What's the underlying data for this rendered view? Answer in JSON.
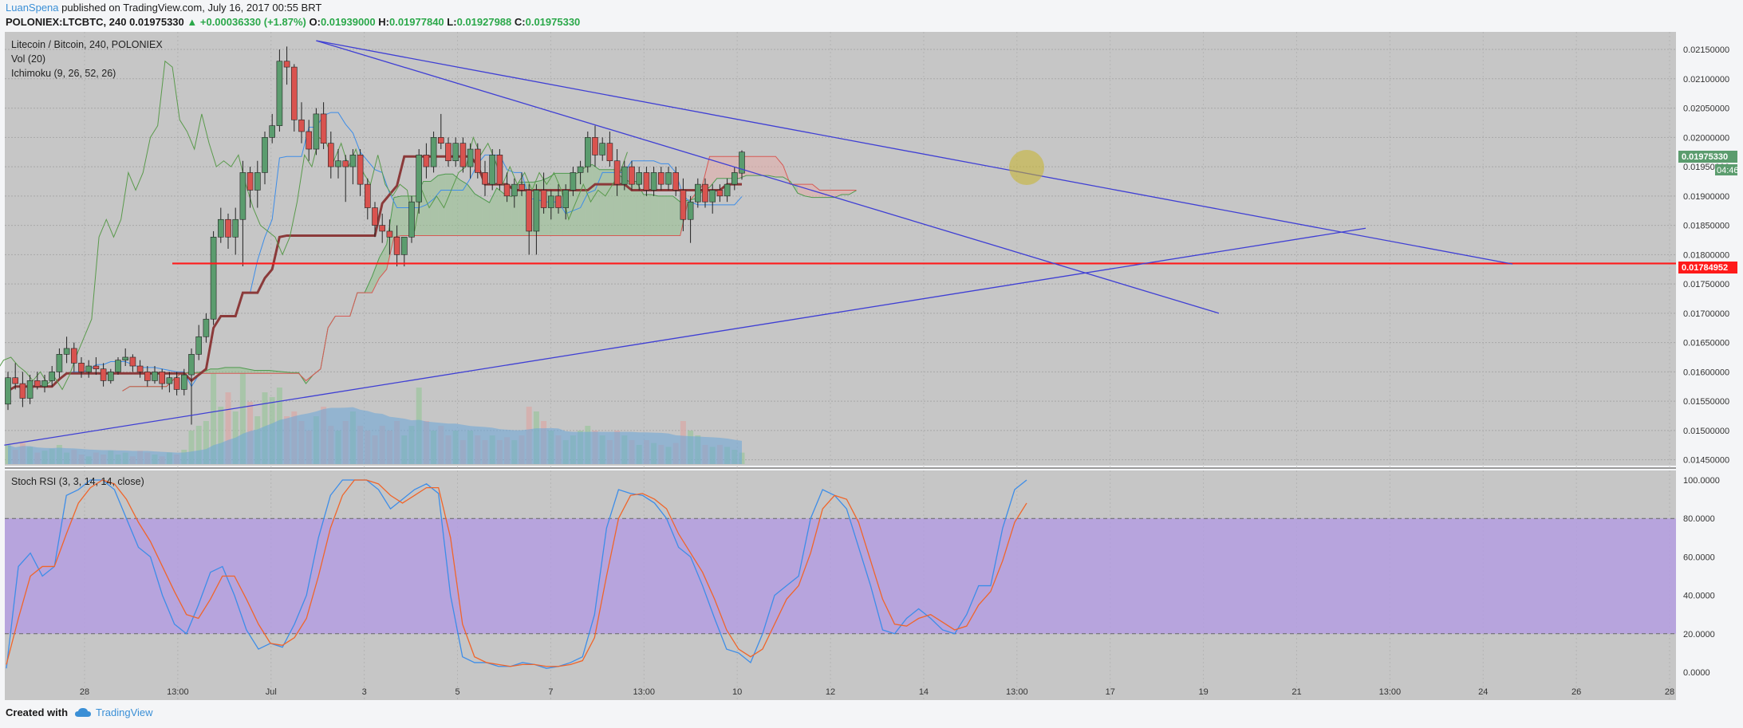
{
  "header": {
    "author": "LuanSpena",
    "published": "published on TradingView.com, July 16, 2017 00:55 BRT",
    "symbol": "POLONIEX:LTCBTC, 240",
    "last": "0.01975330",
    "change": "▲ +0.00036330 (+1.87%)",
    "open_label": "O:",
    "open": "0.01939000",
    "high_label": "H:",
    "high": "0.01977840",
    "low_label": "L:",
    "low": "0.01927988",
    "close_label": "C:",
    "close": "0.01975330"
  },
  "legend": {
    "title": "Litecoin / Bitcoin, 240, POLONIEX",
    "vol": "Vol (20)",
    "ichimoku": "Ichimoku (9, 26, 52, 26)",
    "stoch": "Stoch RSI (3, 3, 14, 14, close)"
  },
  "badges": {
    "price": "0.01975330",
    "countdown": "04:46",
    "support": "0.01784952"
  },
  "footer": {
    "created_with": "Created with",
    "brand": "TradingView"
  },
  "colors": {
    "up": "#5b9c6e",
    "down": "#d9534f",
    "support": "#ff1a1a",
    "trend": "#3f3fd4",
    "rsi_k": "#3d8de8",
    "rsi_d": "#f0652a",
    "rsi_band": "#b49ee0"
  },
  "chart_data": [
    {
      "type": "candlestick",
      "title": "Litecoin / Bitcoin, 240, POLONIEX",
      "x_ticks": [
        "28",
        "13:00",
        "Jul",
        "3",
        "5",
        "7",
        "13:00",
        "10",
        "12",
        "14",
        "13:00",
        "17",
        "19",
        "21",
        "13:00",
        "24",
        "26",
        "28"
      ],
      "y_ticks": [
        "0.02150000",
        "0.02100000",
        "0.02050000",
        "0.02000000",
        "0.01950000",
        "0.01900000",
        "0.01850000",
        "0.01800000",
        "0.01750000",
        "0.01700000",
        "0.01650000",
        "0.01600000",
        "0.01550000",
        "0.01500000",
        "0.01450000"
      ],
      "ylim": [
        0.0144,
        0.0218
      ],
      "support_level": 0.01784952,
      "last_price": 0.0197533,
      "candles": [
        {
          "o": 0.01545,
          "h": 0.016,
          "l": 0.01535,
          "c": 0.0159
        },
        {
          "o": 0.0159,
          "h": 0.01615,
          "l": 0.0157,
          "c": 0.0158
        },
        {
          "o": 0.0158,
          "h": 0.016,
          "l": 0.0154,
          "c": 0.01555
        },
        {
          "o": 0.01555,
          "h": 0.01595,
          "l": 0.01545,
          "c": 0.01585
        },
        {
          "o": 0.01585,
          "h": 0.016,
          "l": 0.0157,
          "c": 0.01575
        },
        {
          "o": 0.01575,
          "h": 0.01595,
          "l": 0.01565,
          "c": 0.01585
        },
        {
          "o": 0.01585,
          "h": 0.0161,
          "l": 0.01575,
          "c": 0.016
        },
        {
          "o": 0.016,
          "h": 0.0164,
          "l": 0.0159,
          "c": 0.0163
        },
        {
          "o": 0.0163,
          "h": 0.0166,
          "l": 0.01615,
          "c": 0.0164
        },
        {
          "o": 0.0164,
          "h": 0.0165,
          "l": 0.016,
          "c": 0.01615
        },
        {
          "o": 0.01615,
          "h": 0.01625,
          "l": 0.0159,
          "c": 0.016
        },
        {
          "o": 0.016,
          "h": 0.0162,
          "l": 0.0159,
          "c": 0.0161
        },
        {
          "o": 0.0161,
          "h": 0.01625,
          "l": 0.01595,
          "c": 0.01605
        },
        {
          "o": 0.01605,
          "h": 0.01615,
          "l": 0.01575,
          "c": 0.01585
        },
        {
          "o": 0.01585,
          "h": 0.01605,
          "l": 0.0158,
          "c": 0.016
        },
        {
          "o": 0.016,
          "h": 0.01625,
          "l": 0.01595,
          "c": 0.0162
        },
        {
          "o": 0.0162,
          "h": 0.0164,
          "l": 0.0161,
          "c": 0.01625
        },
        {
          "o": 0.01625,
          "h": 0.0163,
          "l": 0.016,
          "c": 0.0161
        },
        {
          "o": 0.0161,
          "h": 0.0162,
          "l": 0.0159,
          "c": 0.016
        },
        {
          "o": 0.016,
          "h": 0.0161,
          "l": 0.01575,
          "c": 0.01585
        },
        {
          "o": 0.01585,
          "h": 0.0161,
          "l": 0.0158,
          "c": 0.016
        },
        {
          "o": 0.016,
          "h": 0.01605,
          "l": 0.0157,
          "c": 0.0158
        },
        {
          "o": 0.0158,
          "h": 0.016,
          "l": 0.01565,
          "c": 0.0159
        },
        {
          "o": 0.0159,
          "h": 0.016,
          "l": 0.0156,
          "c": 0.0157
        },
        {
          "o": 0.0157,
          "h": 0.01605,
          "l": 0.0156,
          "c": 0.01595
        },
        {
          "o": 0.01595,
          "h": 0.0164,
          "l": 0.0151,
          "c": 0.0163
        },
        {
          "o": 0.0163,
          "h": 0.0168,
          "l": 0.0162,
          "c": 0.0166
        },
        {
          "o": 0.0166,
          "h": 0.017,
          "l": 0.0165,
          "c": 0.0169
        },
        {
          "o": 0.0169,
          "h": 0.0184,
          "l": 0.0168,
          "c": 0.0183
        },
        {
          "o": 0.0183,
          "h": 0.0188,
          "l": 0.0182,
          "c": 0.0186
        },
        {
          "o": 0.0186,
          "h": 0.0187,
          "l": 0.0181,
          "c": 0.0183
        },
        {
          "o": 0.0183,
          "h": 0.0188,
          "l": 0.018,
          "c": 0.0186
        },
        {
          "o": 0.0186,
          "h": 0.0196,
          "l": 0.0178,
          "c": 0.0194
        },
        {
          "o": 0.0194,
          "h": 0.0195,
          "l": 0.0188,
          "c": 0.0191
        },
        {
          "o": 0.0191,
          "h": 0.0196,
          "l": 0.0188,
          "c": 0.0194
        },
        {
          "o": 0.0194,
          "h": 0.0201,
          "l": 0.0192,
          "c": 0.02
        },
        {
          "o": 0.02,
          "h": 0.0204,
          "l": 0.0199,
          "c": 0.0202
        },
        {
          "o": 0.0202,
          "h": 0.0215,
          "l": 0.0201,
          "c": 0.0213
        },
        {
          "o": 0.0213,
          "h": 0.02155,
          "l": 0.0209,
          "c": 0.0212
        },
        {
          "o": 0.0212,
          "h": 0.02125,
          "l": 0.0201,
          "c": 0.0203
        },
        {
          "o": 0.0203,
          "h": 0.0206,
          "l": 0.0199,
          "c": 0.0201
        },
        {
          "o": 0.0201,
          "h": 0.0203,
          "l": 0.0196,
          "c": 0.0198
        },
        {
          "o": 0.0198,
          "h": 0.0205,
          "l": 0.0197,
          "c": 0.0204
        },
        {
          "o": 0.0204,
          "h": 0.0206,
          "l": 0.0198,
          "c": 0.0199
        },
        {
          "o": 0.0199,
          "h": 0.0201,
          "l": 0.0193,
          "c": 0.0195
        },
        {
          "o": 0.0195,
          "h": 0.0198,
          "l": 0.0193,
          "c": 0.0196
        },
        {
          "o": 0.0196,
          "h": 0.0197,
          "l": 0.0189,
          "c": 0.0195
        },
        {
          "o": 0.0195,
          "h": 0.0198,
          "l": 0.0192,
          "c": 0.0197
        },
        {
          "o": 0.0197,
          "h": 0.0198,
          "l": 0.019,
          "c": 0.0192
        },
        {
          "o": 0.0192,
          "h": 0.0193,
          "l": 0.0186,
          "c": 0.0188
        },
        {
          "o": 0.0188,
          "h": 0.0189,
          "l": 0.0183,
          "c": 0.0185
        },
        {
          "o": 0.0185,
          "h": 0.0187,
          "l": 0.0182,
          "c": 0.0184
        },
        {
          "o": 0.0184,
          "h": 0.0186,
          "l": 0.018,
          "c": 0.0183
        },
        {
          "o": 0.0183,
          "h": 0.0185,
          "l": 0.0178,
          "c": 0.018
        },
        {
          "o": 0.018,
          "h": 0.0183,
          "l": 0.0178,
          "c": 0.0183
        },
        {
          "o": 0.0183,
          "h": 0.019,
          "l": 0.0182,
          "c": 0.0189
        },
        {
          "o": 0.0189,
          "h": 0.0198,
          "l": 0.0187,
          "c": 0.0197
        },
        {
          "o": 0.0197,
          "h": 0.0199,
          "l": 0.0193,
          "c": 0.0195
        },
        {
          "o": 0.0195,
          "h": 0.0201,
          "l": 0.0194,
          "c": 0.02
        },
        {
          "o": 0.02,
          "h": 0.0204,
          "l": 0.0198,
          "c": 0.0199
        },
        {
          "o": 0.0199,
          "h": 0.02,
          "l": 0.0195,
          "c": 0.0196
        },
        {
          "o": 0.0196,
          "h": 0.02,
          "l": 0.0195,
          "c": 0.0199
        },
        {
          "o": 0.0199,
          "h": 0.02,
          "l": 0.0194,
          "c": 0.0195
        },
        {
          "o": 0.0195,
          "h": 0.0199,
          "l": 0.0193,
          "c": 0.0198
        },
        {
          "o": 0.0198,
          "h": 0.0199,
          "l": 0.0193,
          "c": 0.0194
        },
        {
          "o": 0.0194,
          "h": 0.0196,
          "l": 0.019,
          "c": 0.0192
        },
        {
          "o": 0.0192,
          "h": 0.0198,
          "l": 0.0191,
          "c": 0.0197
        },
        {
          "o": 0.0197,
          "h": 0.0198,
          "l": 0.0191,
          "c": 0.0192
        },
        {
          "o": 0.0192,
          "h": 0.0194,
          "l": 0.0189,
          "c": 0.019
        },
        {
          "o": 0.019,
          "h": 0.0193,
          "l": 0.0188,
          "c": 0.0192
        },
        {
          "o": 0.0192,
          "h": 0.0194,
          "l": 0.019,
          "c": 0.0191
        },
        {
          "o": 0.0191,
          "h": 0.0192,
          "l": 0.018,
          "c": 0.0184
        },
        {
          "o": 0.0184,
          "h": 0.0192,
          "l": 0.018,
          "c": 0.0191
        },
        {
          "o": 0.0191,
          "h": 0.0194,
          "l": 0.0187,
          "c": 0.0188
        },
        {
          "o": 0.0188,
          "h": 0.0191,
          "l": 0.0186,
          "c": 0.019
        },
        {
          "o": 0.019,
          "h": 0.0192,
          "l": 0.0187,
          "c": 0.0188
        },
        {
          "o": 0.0188,
          "h": 0.0192,
          "l": 0.0186,
          "c": 0.0191
        },
        {
          "o": 0.0191,
          "h": 0.0195,
          "l": 0.019,
          "c": 0.0194
        },
        {
          "o": 0.0194,
          "h": 0.0196,
          "l": 0.0192,
          "c": 0.0195
        },
        {
          "o": 0.0195,
          "h": 0.0201,
          "l": 0.0194,
          "c": 0.02
        },
        {
          "o": 0.02,
          "h": 0.0202,
          "l": 0.0195,
          "c": 0.0197
        },
        {
          "o": 0.0197,
          "h": 0.02,
          "l": 0.0196,
          "c": 0.0199
        },
        {
          "o": 0.0199,
          "h": 0.0201,
          "l": 0.0195,
          "c": 0.0196
        },
        {
          "o": 0.0196,
          "h": 0.0198,
          "l": 0.019,
          "c": 0.0192
        },
        {
          "o": 0.0192,
          "h": 0.0196,
          "l": 0.0191,
          "c": 0.0195
        },
        {
          "o": 0.0195,
          "h": 0.0196,
          "l": 0.0191,
          "c": 0.0192
        },
        {
          "o": 0.0192,
          "h": 0.0195,
          "l": 0.0191,
          "c": 0.0194
        },
        {
          "o": 0.0194,
          "h": 0.0195,
          "l": 0.019,
          "c": 0.0191
        },
        {
          "o": 0.0191,
          "h": 0.0195,
          "l": 0.019,
          "c": 0.0194
        },
        {
          "o": 0.0194,
          "h": 0.0195,
          "l": 0.0191,
          "c": 0.0192
        },
        {
          "o": 0.0192,
          "h": 0.0195,
          "l": 0.0191,
          "c": 0.0194
        },
        {
          "o": 0.0194,
          "h": 0.0195,
          "l": 0.019,
          "c": 0.0191
        },
        {
          "o": 0.0191,
          "h": 0.0193,
          "l": 0.0184,
          "c": 0.0186
        },
        {
          "o": 0.0186,
          "h": 0.019,
          "l": 0.0182,
          "c": 0.0189
        },
        {
          "o": 0.0189,
          "h": 0.0193,
          "l": 0.0188,
          "c": 0.0192
        },
        {
          "o": 0.0192,
          "h": 0.0193,
          "l": 0.0188,
          "c": 0.0189
        },
        {
          "o": 0.0189,
          "h": 0.0192,
          "l": 0.0187,
          "c": 0.0191
        },
        {
          "o": 0.0191,
          "h": 0.0192,
          "l": 0.0189,
          "c": 0.019
        },
        {
          "o": 0.019,
          "h": 0.0193,
          "l": 0.0189,
          "c": 0.0192
        },
        {
          "o": 0.0192,
          "h": 0.0195,
          "l": 0.0191,
          "c": 0.0194
        },
        {
          "o": 0.01939,
          "h": 0.01978,
          "l": 0.01928,
          "c": 0.01975
        }
      ],
      "volume": [
        0.2,
        0.15,
        0.22,
        0.18,
        0.12,
        0.14,
        0.16,
        0.2,
        0.12,
        0.15,
        0.1,
        0.08,
        0.12,
        0.1,
        0.14,
        0.1,
        0.12,
        0.08,
        0.14,
        0.12,
        0.1,
        0.08,
        0.12,
        0.1,
        0.15,
        0.35,
        0.4,
        0.45,
        0.95,
        0.6,
        0.75,
        0.55,
        0.95,
        0.65,
        0.5,
        0.75,
        0.7,
        0.8,
        0.5,
        0.55,
        0.45,
        0.35,
        0.5,
        0.6,
        0.4,
        0.35,
        0.45,
        0.55,
        0.4,
        0.35,
        0.3,
        0.4,
        0.35,
        0.45,
        0.3,
        0.4,
        0.8,
        0.45,
        0.35,
        0.4,
        0.3,
        0.35,
        0.25,
        0.35,
        0.3,
        0.25,
        0.3,
        0.25,
        0.28,
        0.25,
        0.3,
        0.6,
        0.55,
        0.45,
        0.35,
        0.3,
        0.25,
        0.3,
        0.35,
        0.4,
        0.35,
        0.3,
        0.25,
        0.35,
        0.3,
        0.25,
        0.2,
        0.25,
        0.22,
        0.2,
        0.18,
        0.22,
        0.45,
        0.35,
        0.3,
        0.2,
        0.18,
        0.2,
        0.18,
        0.15,
        0.12
      ]
    },
    {
      "type": "line",
      "title": "Stoch RSI (3, 3, 14, 14, close)",
      "y_ticks": [
        "100.0000",
        "80.0000",
        "60.0000",
        "40.0000",
        "20.0000",
        "0.0000"
      ],
      "ylim": [
        0,
        100
      ],
      "band": [
        20,
        80
      ],
      "series": [
        {
          "name": "K",
          "values": [
            2,
            55,
            62,
            50,
            55,
            92,
            95,
            100,
            100,
            95,
            80,
            65,
            60,
            40,
            25,
            20,
            35,
            52,
            55,
            40,
            22,
            12,
            15,
            13,
            25,
            40,
            70,
            92,
            100,
            100,
            100,
            95,
            85,
            90,
            95,
            98,
            93,
            40,
            8,
            5,
            5,
            3,
            3,
            5,
            4,
            2,
            3,
            5,
            8,
            30,
            75,
            95,
            93,
            92,
            88,
            80,
            65,
            60,
            45,
            28,
            12,
            10,
            5,
            20,
            40,
            45,
            50,
            80,
            95,
            92,
            85,
            65,
            45,
            22,
            20,
            28,
            33,
            28,
            22,
            20,
            30,
            45,
            45,
            75,
            95,
            100
          ]
        },
        {
          "name": "D",
          "values": [
            4,
            28,
            50,
            55,
            55,
            72,
            88,
            96,
            100,
            98,
            90,
            78,
            68,
            55,
            42,
            30,
            28,
            38,
            50,
            50,
            38,
            25,
            15,
            14,
            18,
            28,
            50,
            75,
            92,
            100,
            100,
            98,
            92,
            88,
            92,
            96,
            96,
            70,
            25,
            8,
            5,
            4,
            3,
            4,
            4,
            3,
            3,
            4,
            6,
            18,
            50,
            80,
            92,
            93,
            90,
            85,
            72,
            62,
            52,
            38,
            22,
            12,
            8,
            12,
            25,
            38,
            45,
            62,
            85,
            92,
            90,
            78,
            58,
            38,
            25,
            24,
            28,
            30,
            26,
            22,
            24,
            35,
            42,
            58,
            78,
            88
          ]
        }
      ]
    }
  ]
}
